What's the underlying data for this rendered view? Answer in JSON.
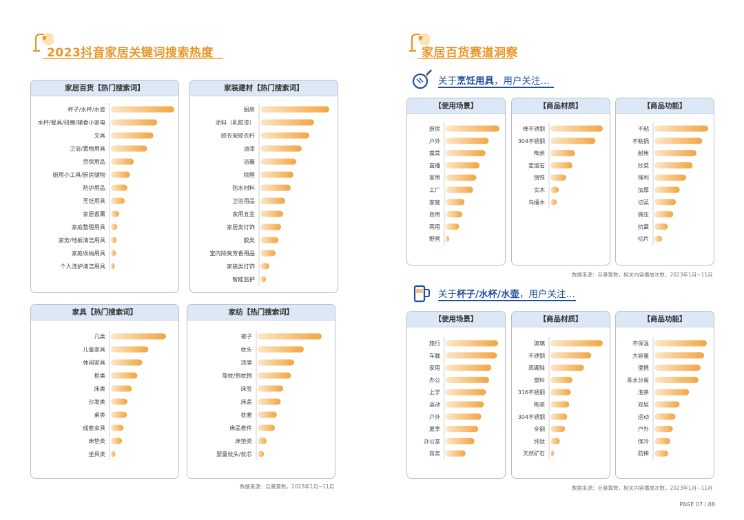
{
  "left": {
    "title": "2023抖音家居关键词搜索热度",
    "source": "数据来源：巨量算数，2023年1月~11月"
  },
  "right": {
    "title": "家居百货赛道洞察",
    "sub1_prefix": "关于",
    "sub1_bold": "烹饪用具",
    "sub1_suffix": "，用户关注…",
    "sub2_prefix": "关于",
    "sub2_bold": "杯子/水杯/水壶",
    "sub2_suffix": "，用户关注…",
    "source1": "数据来源：巨量算数，相关内容播放次数，2023年1月~11月",
    "source2": "数据来源：巨量算数，相关内容播放次数，2023年1月~11月"
  },
  "page_number": "PAGE 07 / 08",
  "colors": {
    "bar_start": "#fce7c8",
    "bar_end": "#f3a542",
    "header_bg": "#dde8f6",
    "title_orange": "#e8962a",
    "subtitle_blue": "#1f4f9c"
  },
  "chart_data": [
    {
      "type": "bar",
      "orientation": "horizontal",
      "title": "家居百货【热门搜索词】",
      "categories": [
        "杯子/水杯/水壶",
        "水杯/餐具/研磨/辅食小家电",
        "文具",
        "卫浴/置物用具",
        "劳保用品",
        "厨用小工具/厨房储物",
        "防护用品",
        "烹饪用具",
        "家居香薰",
        "家庭整理用具",
        "家务/地板清洁用具",
        "家庭收纳用具",
        "个人洗护清洁用具"
      ],
      "values": [
        100,
        73,
        67,
        57,
        36,
        30,
        26,
        22,
        13,
        10,
        9,
        8,
        6
      ]
    },
    {
      "type": "bar",
      "orientation": "horizontal",
      "title": "家装建材【热门搜索词】",
      "categories": [
        "厨房",
        "涂料（乳胶漆）",
        "晾衣架晾衣杆",
        "油漆",
        "浴霸",
        "除醛",
        "防水材料",
        "卫浴用品",
        "家用五金",
        "家居类灯饰",
        "胶类",
        "室内除臭芳香用品",
        "家装类灯饰",
        "智能监护"
      ],
      "values": [
        100,
        78,
        71,
        60,
        52,
        48,
        44,
        36,
        33,
        30,
        26,
        22,
        13,
        8
      ]
    },
    {
      "type": "bar",
      "orientation": "horizontal",
      "title": "家具【热门搜索词】",
      "categories": [
        "几类",
        "儿童家具",
        "休闲家具",
        "柜类",
        "床类",
        "沙发类",
        "桌类",
        "成套家具",
        "床垫类",
        "坐具类"
      ],
      "values": [
        100,
        68,
        57,
        48,
        38,
        30,
        29,
        23,
        20,
        8
      ]
    },
    {
      "type": "bar",
      "orientation": "horizontal",
      "title": "家纺【热门搜索词】",
      "categories": [
        "被子",
        "枕头",
        "凉席",
        "靠枕/抱枕抱",
        "床笠",
        "床盖",
        "枕套",
        "床品套件",
        "床垫类",
        "婴童枕头/枕芯"
      ],
      "values": [
        100,
        72,
        57,
        52,
        40,
        36,
        30,
        27,
        14,
        10
      ]
    },
    {
      "type": "bar",
      "orientation": "horizontal",
      "title": "【使用场景】",
      "group": "烹饪用具",
      "categories": [
        "厨房",
        "户外",
        "露营",
        "直播",
        "家用",
        "工厂",
        "家庭",
        "商用",
        "两用",
        "野营"
      ],
      "values": [
        100,
        80,
        74,
        63,
        57,
        51,
        35,
        31,
        25,
        6
      ]
    },
    {
      "type": "bar",
      "orientation": "horizontal",
      "title": "【商品材质】",
      "group": "烹饪用具",
      "categories": [
        "棒不锈钢",
        "304不锈钢",
        "陶瓷",
        "麦饭石",
        "铸铁",
        "实木",
        "乌檀木"
      ],
      "values": [
        100,
        86,
        47,
        42,
        30,
        16,
        12
      ]
    },
    {
      "type": "bar",
      "orientation": "horizontal",
      "title": "【商品功能】",
      "group": "烹饪用具",
      "categories": [
        "不粘",
        "不粘锅",
        "耐用",
        "炒菜",
        "锋利",
        "加厚",
        "切菜",
        "微压",
        "抗菌",
        "切片"
      ],
      "values": [
        100,
        89,
        78,
        71,
        59,
        47,
        40,
        35,
        25,
        14
      ]
    },
    {
      "type": "bar",
      "orientation": "horizontal",
      "title": "【使用场景】",
      "group": "杯子/水杯/水壶",
      "categories": [
        "旅行",
        "车载",
        "家用",
        "办公",
        "上学",
        "运动",
        "户外",
        "夏季",
        "办公室",
        "商务"
      ],
      "values": [
        100,
        98,
        87,
        83,
        77,
        73,
        68,
        62,
        55,
        38
      ]
    },
    {
      "type": "bar",
      "orientation": "horizontal",
      "title": "【商品材质】",
      "group": "杯子/水杯/水壶",
      "categories": [
        "玻璃",
        "不锈钢",
        "高硼硅",
        "塑料",
        "316不锈钢",
        "陶瓷",
        "304不锈钢",
        "全钢",
        "纯钛",
        "天然矿石"
      ],
      "values": [
        100,
        78,
        64,
        42,
        39,
        36,
        32,
        28,
        18,
        6
      ]
    },
    {
      "type": "bar",
      "orientation": "horizontal",
      "title": "【商品功能】",
      "group": "杯子/水杯/水壶",
      "categories": [
        "不保温",
        "大容量",
        "便携",
        "茶水分离",
        "泡茶",
        "双层",
        "运动",
        "户外",
        "保冷",
        "防摔"
      ],
      "values": [
        100,
        95,
        88,
        84,
        66,
        48,
        40,
        35,
        30,
        26
      ]
    }
  ]
}
